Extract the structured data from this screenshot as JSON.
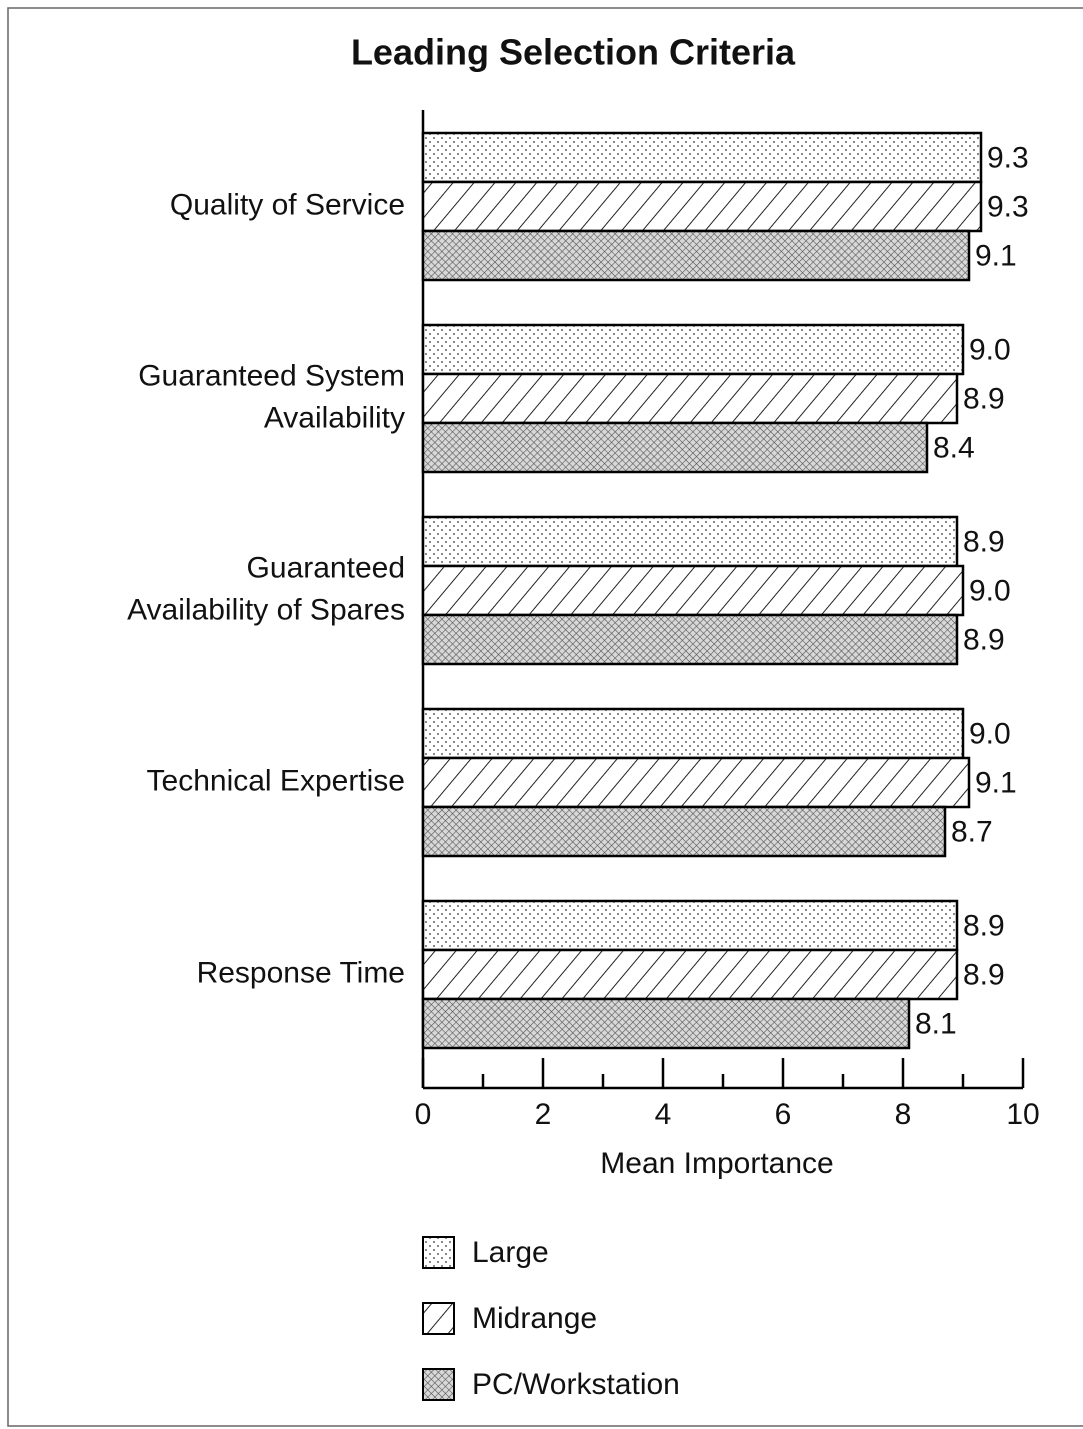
{
  "chart_data": {
    "type": "bar",
    "orientation": "horizontal",
    "title": "Leading Selection Criteria",
    "x_label": "Mean Importance",
    "categories": [
      "Quality of Service",
      "Guaranteed System\nAvailability",
      "Guaranteed\nAvailability of Spares",
      "Technical Expertise",
      "Response Time"
    ],
    "series": [
      {
        "name": "Large",
        "pattern": "dots",
        "color": "#000000",
        "values": [
          9.3,
          9.0,
          8.9,
          9.0,
          8.9
        ],
        "value_labels": [
          "9.3",
          "9.0",
          "8.9",
          "9.0",
          "8.9"
        ]
      },
      {
        "name": "Midrange",
        "pattern": "hatch",
        "color": "#000000",
        "values": [
          9.3,
          8.9,
          9.0,
          9.1,
          8.9
        ],
        "value_labels": [
          "9.3",
          "8.9",
          "9.0",
          "9.1",
          "8.9"
        ]
      },
      {
        "name": "PC/Workstation",
        "pattern": "cross",
        "color": "#000000",
        "values": [
          9.1,
          8.4,
          8.9,
          8.7,
          8.1
        ],
        "value_labels": [
          "9.1",
          "8.4",
          "8.9",
          "8.7",
          "8.1"
        ]
      }
    ],
    "xlim": [
      0,
      10
    ],
    "xticks": [
      0,
      2,
      4,
      6,
      8,
      10
    ],
    "xminorticks": [
      1,
      3,
      5,
      7,
      9
    ],
    "grid": false,
    "legend": "bottom"
  }
}
